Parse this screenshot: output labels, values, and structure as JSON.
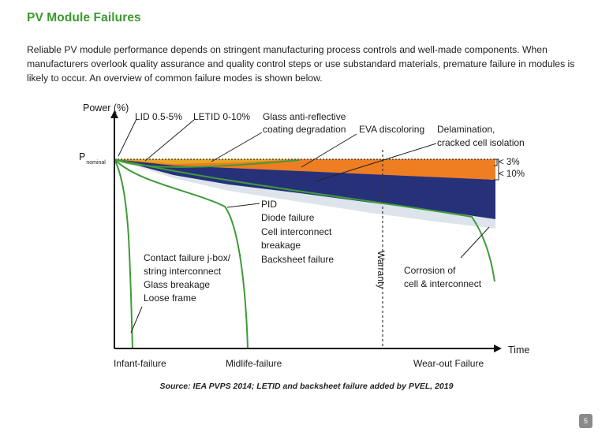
{
  "page": {
    "title": "PV Module Failures",
    "intro": "Reliable PV module performance depends on stringent manufacturing process controls and well-made components. When manufacturers overlook quality assurance and quality control steps or use substandard materials, premature failure in modules is likely to occur. An overview of common failure modes is shown below.",
    "source": "Source: IEA PVPS 2014; LETID and backsheet failure added by PVEL, 2019",
    "page_number": "5"
  },
  "diagram": {
    "y_axis_label": "Power (%)",
    "x_axis_label": "Time",
    "p_nominal_main": "P",
    "p_nominal_sub": "nominal",
    "labels": {
      "lid": "LID 0.5-5%",
      "letid": "LETID 0-10%",
      "glass_ar_1": "Glass anti-reflective",
      "glass_ar_2": "coating degradation",
      "eva": "EVA discoloring",
      "delam_1": "Delamination,",
      "delam_2": "cracked cell isolation",
      "pct_3": "3%",
      "pct_10": "10%",
      "pid_1": "PID",
      "pid_2": "Diode failure",
      "pid_3": "Cell interconnect",
      "pid_4": "breakage",
      "pid_5": "Backsheet failure",
      "infant_1": "Contact failure j-box/",
      "infant_2": "string interconnect",
      "infant_3": "Glass breakage",
      "infant_4": "Loose frame",
      "warranty": "Warranty",
      "corrosion_1": "Corrosion of",
      "corrosion_2": "cell & interconnect"
    },
    "phases": {
      "infant": "Infant-failure",
      "midlife": "Midlife-failure",
      "wearout": "Wear-out Failure"
    },
    "colors": {
      "green": "#3f9b3a",
      "orange": "#ef7d22",
      "gold": "#e8a823",
      "navy": "#26317a",
      "light": "#dde4ec",
      "title": "#3a9a2e"
    }
  }
}
